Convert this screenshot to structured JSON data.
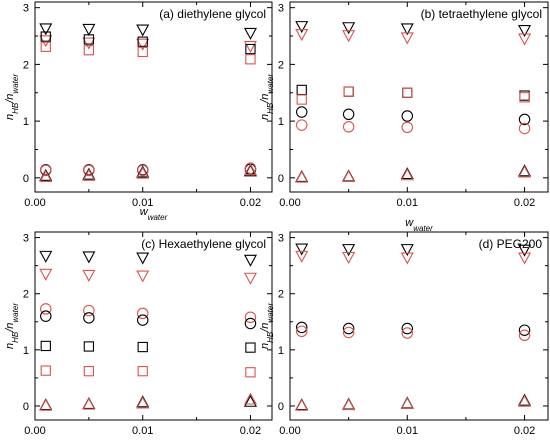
{
  "chart_data": [
    {
      "type": "scatter",
      "title": "(a) diethylene glycol",
      "ylabel": "n_HB/n_water",
      "xlabel": "",
      "xlim": [
        0,
        0.022
      ],
      "ylim": [
        -0.25,
        3.1
      ],
      "x_ticks": [
        0.0,
        0.01,
        0.02
      ],
      "x_tick_labels": [
        "0.00",
        "0.01",
        "0.02"
      ],
      "y_ticks": [
        0,
        1,
        2,
        3
      ],
      "y_tick_labels": [
        "0",
        "1",
        "2",
        "3"
      ],
      "series": [
        {
          "marker": "triangle-down",
          "color": "#000000",
          "points": [
            [
              0.001,
              2.63
            ],
            [
              0.005,
              2.62
            ],
            [
              0.01,
              2.61
            ],
            [
              0.02,
              2.55
            ]
          ]
        },
        {
          "marker": "triangle-down",
          "color": "#d9534f",
          "points": [
            [
              0.001,
              2.42
            ],
            [
              0.005,
              2.38
            ],
            [
              0.01,
              2.36
            ],
            [
              0.02,
              2.32
            ]
          ]
        },
        {
          "marker": "square",
          "color": "#000000",
          "points": [
            [
              0.001,
              2.49
            ],
            [
              0.005,
              2.44
            ],
            [
              0.01,
              2.4
            ],
            [
              0.02,
              2.27
            ]
          ]
        },
        {
          "marker": "square",
          "color": "#d9534f",
          "points": [
            [
              0.001,
              2.31
            ],
            [
              0.005,
              2.25
            ],
            [
              0.01,
              2.22
            ],
            [
              0.02,
              2.09
            ]
          ]
        },
        {
          "marker": "circle",
          "color": "#000000",
          "points": [
            [
              0.001,
              0.14
            ],
            [
              0.005,
              0.14
            ],
            [
              0.01,
              0.14
            ],
            [
              0.02,
              0.15
            ]
          ]
        },
        {
          "marker": "circle",
          "color": "#d9534f",
          "points": [
            [
              0.001,
              0.13
            ],
            [
              0.005,
              0.13
            ],
            [
              0.01,
              0.13
            ],
            [
              0.02,
              0.17
            ]
          ]
        },
        {
          "marker": "triangle-up",
          "color": "#000000",
          "points": [
            [
              0.001,
              0.04
            ],
            [
              0.005,
              0.06
            ],
            [
              0.01,
              0.1
            ],
            [
              0.02,
              0.12
            ]
          ]
        },
        {
          "marker": "triangle-up",
          "color": "#d9534f",
          "points": [
            [
              0.001,
              0.02
            ],
            [
              0.005,
              0.04
            ],
            [
              0.01,
              0.08
            ],
            [
              0.02,
              0.14
            ]
          ]
        }
      ]
    },
    {
      "type": "scatter",
      "title": "(b) tetraethylene glycol",
      "ylabel": "n_HB/n_water",
      "xlabel": "",
      "xlim": [
        0,
        0.022
      ],
      "ylim": [
        -0.25,
        3.1
      ],
      "x_ticks": [
        0.0,
        0.01,
        0.02
      ],
      "x_tick_labels": [
        "0.00",
        "0.01",
        "0.02"
      ],
      "y_ticks": [
        0,
        1,
        2,
        3
      ],
      "y_tick_labels": [
        "0",
        "1",
        "2",
        "3"
      ],
      "series": [
        {
          "marker": "triangle-down",
          "color": "#000000",
          "points": [
            [
              0.001,
              2.67
            ],
            [
              0.005,
              2.65
            ],
            [
              0.01,
              2.63
            ],
            [
              0.02,
              2.6
            ]
          ]
        },
        {
          "marker": "triangle-down",
          "color": "#d9534f",
          "points": [
            [
              0.001,
              2.53
            ],
            [
              0.005,
              2.51
            ],
            [
              0.01,
              2.47
            ],
            [
              0.02,
              2.45
            ]
          ]
        },
        {
          "marker": "square",
          "color": "#000000",
          "points": [
            [
              0.001,
              1.55
            ],
            [
              0.005,
              1.52
            ],
            [
              0.01,
              1.5
            ],
            [
              0.02,
              1.45
            ]
          ]
        },
        {
          "marker": "square",
          "color": "#d9534f",
          "points": [
            [
              0.001,
              1.38
            ],
            [
              0.005,
              1.52
            ],
            [
              0.01,
              1.5
            ],
            [
              0.02,
              1.42
            ]
          ]
        },
        {
          "marker": "circle",
          "color": "#000000",
          "points": [
            [
              0.001,
              1.16
            ],
            [
              0.005,
              1.12
            ],
            [
              0.01,
              1.09
            ],
            [
              0.02,
              1.03
            ]
          ]
        },
        {
          "marker": "circle",
          "color": "#d9534f",
          "points": [
            [
              0.001,
              0.93
            ],
            [
              0.005,
              0.9
            ],
            [
              0.01,
              0.89
            ],
            [
              0.02,
              0.87
            ]
          ]
        },
        {
          "marker": "triangle-up",
          "color": "#000000",
          "points": [
            [
              0.001,
              0.02
            ],
            [
              0.005,
              0.03
            ],
            [
              0.01,
              0.07
            ],
            [
              0.02,
              0.12
            ]
          ]
        },
        {
          "marker": "triangle-up",
          "color": "#d9534f",
          "points": [
            [
              0.001,
              0.01
            ],
            [
              0.005,
              0.02
            ],
            [
              0.01,
              0.05
            ],
            [
              0.02,
              0.1
            ]
          ]
        }
      ]
    },
    {
      "type": "scatter",
      "title": "(c) Hexaethylene glycol",
      "ylabel": "n_HB/n_water",
      "xlabel": "",
      "xlim": [
        0,
        0.022
      ],
      "ylim": [
        -0.25,
        3.1
      ],
      "x_ticks": [
        0.0,
        0.01,
        0.02
      ],
      "x_tick_labels": [
        "0.00",
        "0.01",
        "0.02"
      ],
      "y_ticks": [
        0,
        1,
        2,
        3
      ],
      "y_tick_labels": [
        "0",
        "1",
        "2",
        "3"
      ],
      "series": [
        {
          "marker": "triangle-down",
          "color": "#000000",
          "points": [
            [
              0.001,
              2.67
            ],
            [
              0.005,
              2.66
            ],
            [
              0.01,
              2.64
            ],
            [
              0.02,
              2.6
            ]
          ]
        },
        {
          "marker": "triangle-down",
          "color": "#d9534f",
          "points": [
            [
              0.001,
              2.35
            ],
            [
              0.005,
              2.33
            ],
            [
              0.01,
              2.32
            ],
            [
              0.02,
              2.28
            ]
          ]
        },
        {
          "marker": "circle",
          "color": "#d9534f",
          "points": [
            [
              0.001,
              1.73
            ],
            [
              0.005,
              1.7
            ],
            [
              0.01,
              1.65
            ],
            [
              0.02,
              1.58
            ]
          ]
        },
        {
          "marker": "circle",
          "color": "#000000",
          "points": [
            [
              0.001,
              1.6
            ],
            [
              0.005,
              1.57
            ],
            [
              0.01,
              1.53
            ],
            [
              0.02,
              1.47
            ]
          ]
        },
        {
          "marker": "square",
          "color": "#000000",
          "points": [
            [
              0.001,
              1.07
            ],
            [
              0.005,
              1.06
            ],
            [
              0.01,
              1.05
            ],
            [
              0.02,
              1.04
            ]
          ]
        },
        {
          "marker": "square",
          "color": "#d9534f",
          "points": [
            [
              0.001,
              0.63
            ],
            [
              0.005,
              0.62
            ],
            [
              0.01,
              0.62
            ],
            [
              0.02,
              0.6
            ]
          ]
        },
        {
          "marker": "triangle-up",
          "color": "#000000",
          "points": [
            [
              0.001,
              0.02
            ],
            [
              0.005,
              0.04
            ],
            [
              0.01,
              0.07
            ],
            [
              0.02,
              0.08
            ]
          ]
        },
        {
          "marker": "triangle-up",
          "color": "#d9534f",
          "points": [
            [
              0.001,
              0.01
            ],
            [
              0.005,
              0.03
            ],
            [
              0.01,
              0.05
            ],
            [
              0.02,
              0.12
            ]
          ]
        }
      ]
    },
    {
      "type": "scatter",
      "title": "(d) PEG200",
      "ylabel": "n_HB/n_water",
      "xlabel": "",
      "xlim": [
        0,
        0.022
      ],
      "ylim": [
        -0.25,
        3.1
      ],
      "x_ticks": [
        0.0,
        0.01,
        0.02
      ],
      "x_tick_labels": [
        "0.00",
        "0.01",
        "0.02"
      ],
      "y_ticks": [
        0,
        1,
        2,
        3
      ],
      "y_tick_labels": [
        "0",
        "1",
        "2",
        "3"
      ],
      "series": [
        {
          "marker": "triangle-down",
          "color": "#000000",
          "points": [
            [
              0.001,
              2.8
            ],
            [
              0.005,
              2.79
            ],
            [
              0.01,
              2.79
            ],
            [
              0.02,
              2.78
            ]
          ]
        },
        {
          "marker": "triangle-down",
          "color": "#d9534f",
          "points": [
            [
              0.001,
              2.67
            ],
            [
              0.005,
              2.65
            ],
            [
              0.01,
              2.64
            ],
            [
              0.02,
              2.64
            ]
          ]
        },
        {
          "marker": "circle",
          "color": "#000000",
          "points": [
            [
              0.001,
              1.4
            ],
            [
              0.005,
              1.38
            ],
            [
              0.01,
              1.38
            ],
            [
              0.02,
              1.35
            ]
          ]
        },
        {
          "marker": "circle",
          "color": "#d9534f",
          "points": [
            [
              0.001,
              1.33
            ],
            [
              0.005,
              1.31
            ],
            [
              0.01,
              1.3
            ],
            [
              0.02,
              1.26
            ]
          ]
        },
        {
          "marker": "triangle-up",
          "color": "#000000",
          "points": [
            [
              0.001,
              0.02
            ],
            [
              0.005,
              0.03
            ],
            [
              0.01,
              0.05
            ],
            [
              0.02,
              0.1
            ]
          ]
        },
        {
          "marker": "triangle-up",
          "color": "#d9534f",
          "points": [
            [
              0.001,
              0.01
            ],
            [
              0.005,
              0.02
            ],
            [
              0.01,
              0.04
            ],
            [
              0.02,
              0.08
            ]
          ]
        }
      ]
    }
  ],
  "axis_texts": {
    "y_main": "n",
    "y_sub_top": "HB",
    "y_div": "/n",
    "y_sub_bottom": "water",
    "x_main": "w",
    "x_sub": "water"
  }
}
